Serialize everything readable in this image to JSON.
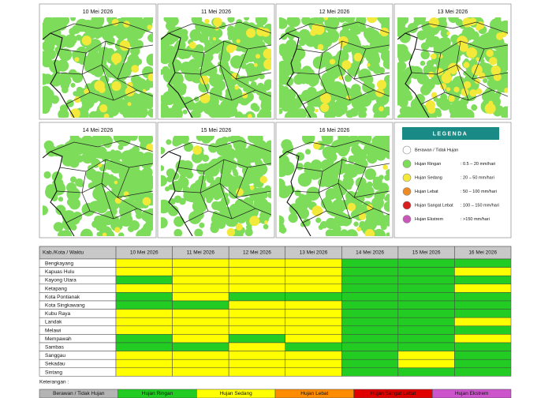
{
  "maps": [
    {
      "label": "10 Mei 2026"
    },
    {
      "label": "11 Mei 2026"
    },
    {
      "label": "12 Mei 2026"
    },
    {
      "label": "13 Mei 2026"
    },
    {
      "label": "14 Mei 2026"
    },
    {
      "label": "15 Mei 2026"
    },
    {
      "label": "16 Mei 2026"
    }
  ],
  "legend": {
    "title": "LEGENDA",
    "items": [
      {
        "name": "Berawan / Tidak Hujan",
        "color": "#ffffff"
      },
      {
        "name": "Hujan Ringan",
        "range": ": 0.5 – 20 mm/hari",
        "color": "#7ddc5a"
      },
      {
        "name": "Hujan Sedang",
        "range": ": 20 – 50 mm/hari",
        "color": "#f2e93a"
      },
      {
        "name": "Hujan Lebat",
        "range": ": 50 – 100 mm/hari",
        "color": "#ec8a25"
      },
      {
        "name": "Hujan Sangat Lebat",
        "range": ": 100 – 150 mm/hari",
        "color": "#d81e1e"
      },
      {
        "name": "Hujan Ekstrem",
        "range": ": >150 mm/hari",
        "color": "#c857b8"
      }
    ]
  },
  "table": {
    "header": [
      "Kab./Kota / Waktu",
      "10 Mei 2026",
      "11 Mei 2026",
      "12 Mei 2026",
      "13 Mei 2026",
      "14 Mei 2026",
      "15 Mei 2026",
      "16 Mei 2026"
    ],
    "rows": [
      {
        "name": "Bengkayang",
        "colors": [
          "#ffff00",
          "#ffff00",
          "#ffff00",
          "#ffff00",
          "#22cc22",
          "#22cc22",
          "#22cc22"
        ]
      },
      {
        "name": "Kapuas Hulu",
        "colors": [
          "#ffff00",
          "#ffff00",
          "#ffff00",
          "#ffff00",
          "#22cc22",
          "#22cc22",
          "#ffff00"
        ]
      },
      {
        "name": "Kayong Utara",
        "colors": [
          "#22cc22",
          "#ffff00",
          "#ffff00",
          "#ffff00",
          "#22cc22",
          "#22cc22",
          "#22cc22"
        ]
      },
      {
        "name": "Ketapang",
        "colors": [
          "#ffff00",
          "#ffff00",
          "#ffff00",
          "#ffff00",
          "#22cc22",
          "#22cc22",
          "#ffff00"
        ]
      },
      {
        "name": "Kota Pontianak",
        "colors": [
          "#22cc22",
          "#ffff00",
          "#22cc22",
          "#22cc22",
          "#22cc22",
          "#22cc22",
          "#22cc22"
        ]
      },
      {
        "name": "Kota Singkawang",
        "colors": [
          "#22cc22",
          "#22cc22",
          "#ffff00",
          "#ffff00",
          "#22cc22",
          "#22cc22",
          "#22cc22"
        ]
      },
      {
        "name": "Kubu Raya",
        "colors": [
          "#ffff00",
          "#ffff00",
          "#ffff00",
          "#ffff00",
          "#22cc22",
          "#22cc22",
          "#22cc22"
        ]
      },
      {
        "name": "Landak",
        "colors": [
          "#ffff00",
          "#ffff00",
          "#ffff00",
          "#ffff00",
          "#22cc22",
          "#22cc22",
          "#ffff00"
        ]
      },
      {
        "name": "Melawi",
        "colors": [
          "#ffff00",
          "#ffff00",
          "#ffff00",
          "#ffff00",
          "#22cc22",
          "#22cc22",
          "#22cc22"
        ]
      },
      {
        "name": "Mempawah",
        "colors": [
          "#22cc22",
          "#ffff00",
          "#22cc22",
          "#ffff00",
          "#22cc22",
          "#22cc22",
          "#ffff00"
        ]
      },
      {
        "name": "Sambas",
        "colors": [
          "#22cc22",
          "#22cc22",
          "#ffff00",
          "#22cc22",
          "#22cc22",
          "#22cc22",
          "#22cc22"
        ]
      },
      {
        "name": "Sanggau",
        "colors": [
          "#ffff00",
          "#ffff00",
          "#ffff00",
          "#ffff00",
          "#22cc22",
          "#ffff00",
          "#22cc22"
        ]
      },
      {
        "name": "Sekadau",
        "colors": [
          "#ffff00",
          "#ffff00",
          "#ffff00",
          "#ffff00",
          "#22cc22",
          "#ffff00",
          "#22cc22"
        ]
      },
      {
        "name": "Sintang",
        "colors": [
          "#ffff00",
          "#ffff00",
          "#ffff00",
          "#ffff00",
          "#22cc22",
          "#22cc22",
          "#22cc22"
        ]
      }
    ]
  },
  "keterangan": {
    "title": "Keterangan :",
    "items": [
      {
        "label": "Berawan / Tidak Hujan",
        "color": "#b4b4b4"
      },
      {
        "label": "Hujan Ringan",
        "color": "#22cc22"
      },
      {
        "label": "Hujan Sedang",
        "color": "#ffff00"
      },
      {
        "label": "Hujan Lebat",
        "color": "#ff8c00"
      },
      {
        "label": "Hujan Sangat Lebat",
        "color": "#e00000"
      },
      {
        "label": "Hujan Ekstrem",
        "color": "#cc55cc"
      }
    ]
  }
}
